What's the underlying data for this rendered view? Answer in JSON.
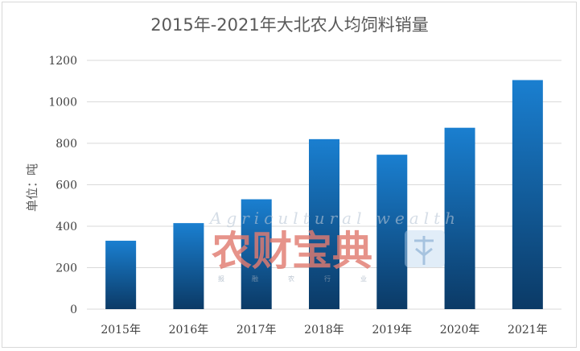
{
  "chart_data": {
    "type": "bar",
    "title": "2015年-2021年大北农人均饲料销量",
    "ylabel": "单位：吨",
    "xlabel": "",
    "categories": [
      "2015年",
      "2016年",
      "2017年",
      "2018年",
      "2019年",
      "2020年",
      "2021年"
    ],
    "values": [
      330,
      415,
      530,
      820,
      745,
      875,
      1105
    ],
    "ylim": [
      0,
      1200
    ],
    "yticks": [
      0,
      200,
      400,
      600,
      800,
      1000,
      1200
    ],
    "grid": true,
    "legend": "none",
    "bar_color_top": "#1a7fd0",
    "bar_color_bottom": "#0b3a66",
    "gridline_color": "#d9d9d9"
  },
  "watermark": {
    "logo_text": "农财宝典",
    "english_text": "Agricultural wealth",
    "small_text": [
      "报",
      "融",
      "农",
      "行",
      "业"
    ],
    "badge_icon": "orange-badge-icon"
  }
}
